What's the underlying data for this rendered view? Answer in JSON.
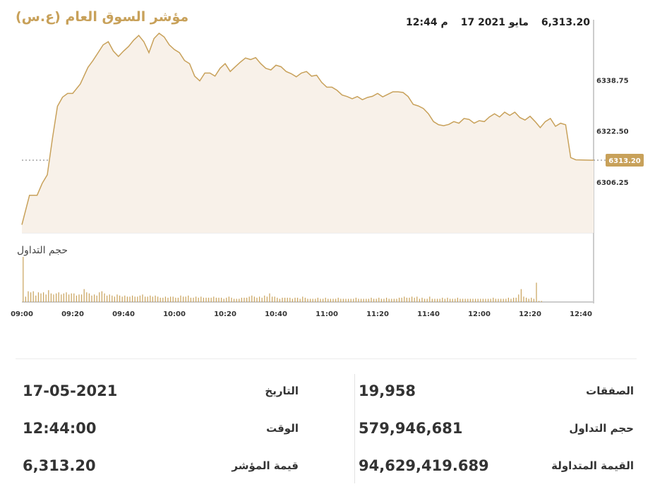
{
  "title": "مؤشر السوق العام (ع.س)",
  "header": {
    "time": "12:44 م",
    "date": "17 مايو 2021",
    "value": "6,313.20"
  },
  "volume_label": "حجم التداول",
  "chart_data": {
    "type": "area",
    "title": "مؤشر السوق العام (ع.س)",
    "y_ticks": [
      6338.75,
      6322.5,
      6306.25
    ],
    "ylim": [
      6290.0,
      6358.0
    ],
    "x_ticks": [
      "09:00",
      "09:20",
      "09:40",
      "10:00",
      "10:20",
      "10:40",
      "11:00",
      "11:20",
      "11:40",
      "12:00",
      "12:20",
      "12:40"
    ],
    "current_value": 6313.2,
    "current_label": "6313.20",
    "colors": {
      "line": "#c8a15a",
      "fill": "#f8f1e9",
      "volume": "#c8a15a",
      "axis": "#999999",
      "marker": "#c8a15a"
    },
    "series": [
      {
        "type": "line",
        "points": [
          [
            "09:00",
            6292.6
          ],
          [
            "09:03",
            6302.0
          ],
          [
            "09:06",
            6302.0
          ],
          [
            "09:08",
            6305.8
          ],
          [
            "09:10",
            6308.5
          ],
          [
            "09:12",
            6320.0
          ],
          [
            "09:14",
            6330.4
          ],
          [
            "09:16",
            6333.3
          ],
          [
            "09:18",
            6334.5
          ],
          [
            "09:20",
            6334.5
          ],
          [
            "09:23",
            6337.5
          ],
          [
            "09:26",
            6342.8
          ],
          [
            "09:28",
            6345.0
          ],
          [
            "09:30",
            6347.5
          ],
          [
            "09:32",
            6350.0
          ],
          [
            "09:34",
            6351.0
          ],
          [
            "09:36",
            6348.0
          ],
          [
            "09:38",
            6346.3
          ],
          [
            "09:40",
            6348.0
          ],
          [
            "09:42",
            6349.5
          ],
          [
            "09:44",
            6351.5
          ],
          [
            "09:46",
            6353.0
          ],
          [
            "09:48",
            6351.0
          ],
          [
            "09:50",
            6347.5
          ],
          [
            "09:52",
            6352.0
          ],
          [
            "09:54",
            6353.7
          ],
          [
            "09:56",
            6352.5
          ],
          [
            "09:58",
            6350.0
          ],
          [
            "10:00",
            6348.5
          ],
          [
            "10:02",
            6347.5
          ],
          [
            "10:04",
            6345.0
          ],
          [
            "10:06",
            6344.0
          ],
          [
            "10:08",
            6340.0
          ],
          [
            "10:10",
            6338.5
          ],
          [
            "10:12",
            6341.0
          ],
          [
            "10:14",
            6341.0
          ],
          [
            "10:16",
            6340.0
          ],
          [
            "10:18",
            6342.5
          ],
          [
            "10:20",
            6344.0
          ],
          [
            "10:22",
            6341.5
          ],
          [
            "10:24",
            6343.0
          ],
          [
            "10:26",
            6344.5
          ],
          [
            "10:28",
            6345.8
          ],
          [
            "10:30",
            6345.3
          ],
          [
            "10:32",
            6345.9
          ],
          [
            "10:34",
            6344.0
          ],
          [
            "10:36",
            6342.5
          ],
          [
            "10:38",
            6342.0
          ],
          [
            "10:40",
            6343.5
          ],
          [
            "10:42",
            6343.0
          ],
          [
            "10:44",
            6341.5
          ],
          [
            "10:46",
            6340.8
          ],
          [
            "10:48",
            6339.8
          ],
          [
            "10:50",
            6341.0
          ],
          [
            "10:52",
            6341.5
          ],
          [
            "10:54",
            6340.0
          ],
          [
            "10:56",
            6340.3
          ],
          [
            "10:58",
            6338.0
          ],
          [
            "11:00",
            6336.5
          ],
          [
            "11:02",
            6336.5
          ],
          [
            "11:04",
            6335.5
          ],
          [
            "11:06",
            6334.0
          ],
          [
            "11:08",
            6333.5
          ],
          [
            "11:10",
            6332.8
          ],
          [
            "11:12",
            6333.5
          ],
          [
            "11:14",
            6332.5
          ],
          [
            "11:16",
            6333.2
          ],
          [
            "11:18",
            6333.6
          ],
          [
            "11:20",
            6334.5
          ],
          [
            "11:22",
            6333.4
          ],
          [
            "11:24",
            6334.2
          ],
          [
            "11:26",
            6335.0
          ],
          [
            "11:28",
            6335.0
          ],
          [
            "11:30",
            6334.8
          ],
          [
            "11:32",
            6333.5
          ],
          [
            "11:34",
            6331.0
          ],
          [
            "11:36",
            6330.5
          ],
          [
            "11:38",
            6329.7
          ],
          [
            "11:40",
            6328.0
          ],
          [
            "11:42",
            6325.5
          ],
          [
            "11:44",
            6324.5
          ],
          [
            "11:46",
            6324.2
          ],
          [
            "11:48",
            6324.6
          ],
          [
            "11:50",
            6325.5
          ],
          [
            "11:52",
            6325.0
          ],
          [
            "11:54",
            6326.5
          ],
          [
            "11:56",
            6326.2
          ],
          [
            "11:58",
            6325.0
          ],
          [
            "12:00",
            6325.8
          ],
          [
            "12:02",
            6325.5
          ],
          [
            "12:04",
            6327.0
          ],
          [
            "12:06",
            6328.0
          ],
          [
            "12:08",
            6327.0
          ],
          [
            "12:10",
            6328.5
          ],
          [
            "12:12",
            6327.5
          ],
          [
            "12:14",
            6328.5
          ],
          [
            "12:16",
            6326.8
          ],
          [
            "12:18",
            6326.0
          ],
          [
            "12:20",
            6327.2
          ],
          [
            "12:22",
            6325.5
          ],
          [
            "12:24",
            6323.6
          ],
          [
            "12:26",
            6325.5
          ],
          [
            "12:28",
            6326.5
          ],
          [
            "12:30",
            6324.0
          ],
          [
            "12:32",
            6325.0
          ],
          [
            "12:34",
            6324.5
          ],
          [
            "12:36",
            6314.0
          ],
          [
            "12:38",
            6313.3
          ],
          [
            "12:44",
            6313.2
          ]
        ]
      }
    ],
    "volume_values": [
      42,
      5,
      10,
      9,
      10,
      6,
      9,
      8,
      9,
      7,
      11,
      8,
      7,
      8,
      9,
      7,
      8,
      9,
      7,
      8,
      8,
      6,
      7,
      7,
      12,
      9,
      8,
      6,
      7,
      6,
      9,
      10,
      8,
      6,
      7,
      6,
      5,
      7,
      6,
      5,
      6,
      5,
      5,
      6,
      5,
      5,
      6,
      7,
      5,
      5,
      6,
      5,
      6,
      5,
      4,
      4,
      5,
      4,
      5,
      5,
      4,
      4,
      6,
      5,
      5,
      6,
      4,
      4,
      5,
      4,
      5,
      4,
      4,
      4,
      4,
      5,
      4,
      4,
      4,
      3,
      4,
      5,
      4,
      3,
      3,
      3,
      4,
      4,
      4,
      5,
      6,
      5,
      4,
      5,
      4,
      6,
      5,
      8,
      5,
      5,
      4,
      3,
      4,
      4,
      4,
      4,
      3,
      4,
      4,
      3,
      5,
      4,
      3,
      3,
      3,
      3,
      4,
      3,
      3,
      4,
      3,
      3,
      3,
      3,
      4,
      3,
      3,
      3,
      3,
      3,
      3,
      4,
      3,
      3,
      3,
      3,
      3,
      4,
      3,
      3,
      4,
      3,
      3,
      4,
      3,
      3,
      3,
      3,
      4,
      4,
      5,
      4,
      4,
      5,
      4,
      5,
      3,
      4,
      3,
      3,
      5,
      3,
      3,
      3,
      3,
      4,
      3,
      4,
      3,
      3,
      3,
      4,
      3,
      3,
      3,
      3,
      3,
      3,
      3,
      3,
      3,
      3,
      3,
      3,
      3,
      4,
      3,
      3,
      3,
      3,
      3,
      4,
      3,
      4,
      4,
      7,
      12,
      5,
      4,
      3,
      4,
      3,
      18,
      1,
      1
    ]
  },
  "stats": {
    "date_label": "التاريخ",
    "date_value": "17-05-2021",
    "time_label": "الوقت",
    "time_value": "12:44:00",
    "index_label": "قيمة المؤشر",
    "index_value": "6,313.20",
    "deals_label": "الصفقات",
    "deals_value": "19,958",
    "volume_label": "حجم التداول",
    "volume_value": "579,946,681",
    "turnover_label": "القيمة المتداولة",
    "turnover_value": "94,629,419.689"
  }
}
